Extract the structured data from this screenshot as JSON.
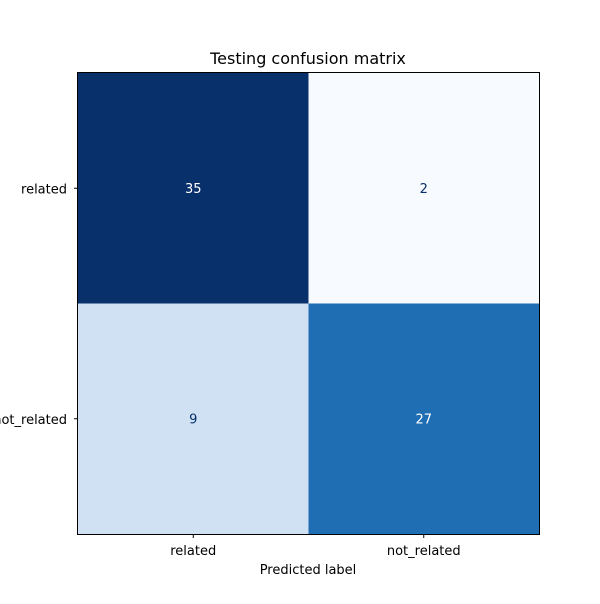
{
  "chart_data": {
    "type": "heatmap",
    "title": "Testing confusion matrix",
    "xlabel": "Predicted label",
    "ylabel": "",
    "x_categories": [
      "related",
      "not_related"
    ],
    "y_categories": [
      "related",
      "not_related"
    ],
    "values": [
      [
        35,
        2
      ],
      [
        9,
        27
      ]
    ],
    "colormap": "Blues",
    "value_range": [
      2,
      35
    ],
    "colors": {
      "cells": [
        [
          "#08306b",
          "#f7fbff"
        ],
        [
          "#cfe1f2",
          "#1f6eb3"
        ]
      ],
      "text_on_dark": "#ffffff",
      "text_on_light": "#08306b",
      "frame": "#000000"
    },
    "grid": false,
    "colorbar": false
  }
}
